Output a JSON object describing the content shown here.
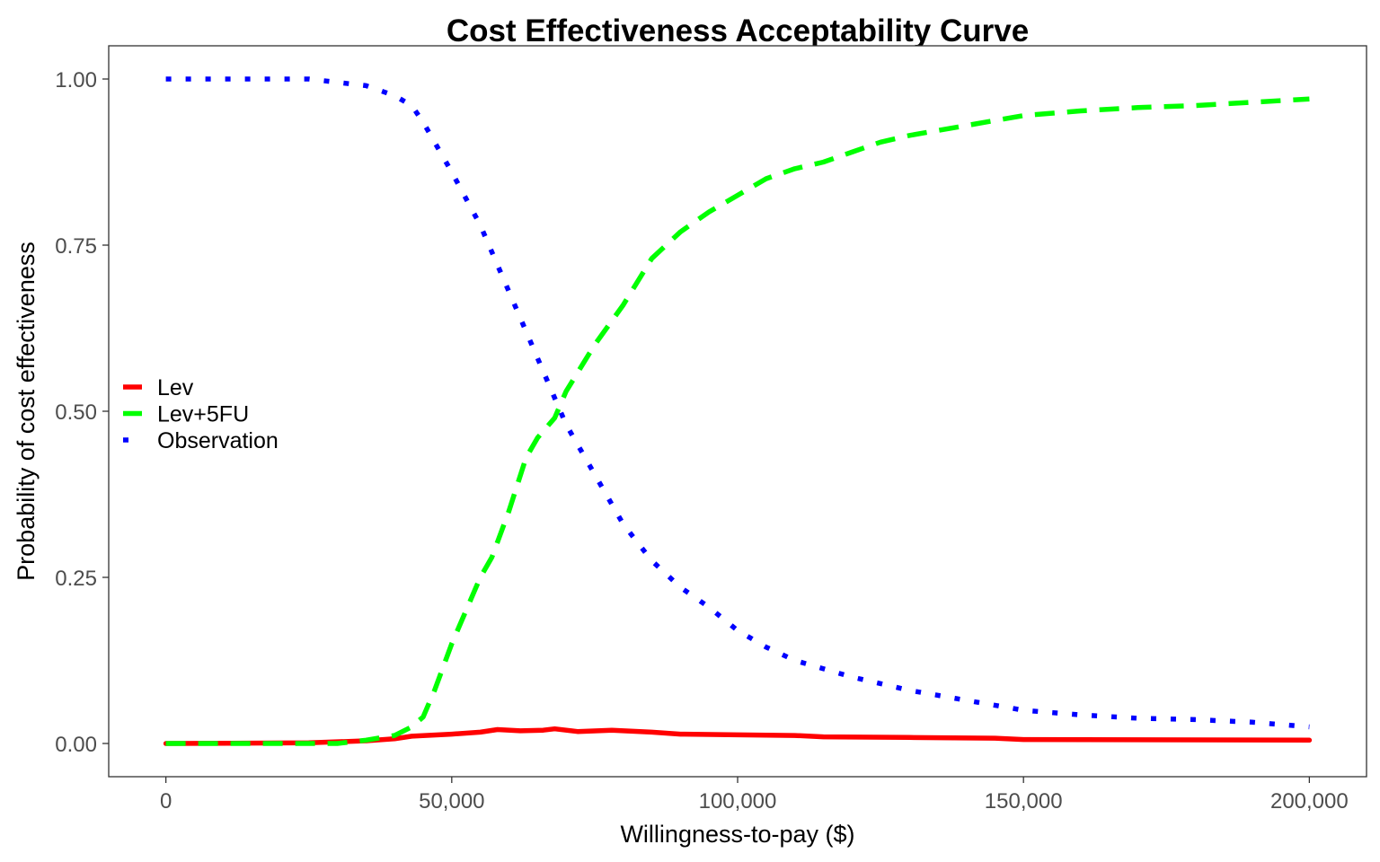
{
  "chart_data": {
    "type": "line",
    "title": "Cost Effectiveness Acceptability Curve",
    "xlabel": "Willingness-to-pay ($)",
    "ylabel": "Probability of cost effectiveness",
    "xlim": [
      -10000,
      210000
    ],
    "ylim": [
      -0.05,
      1.05
    ],
    "x_ticks": [
      0,
      50000,
      100000,
      150000,
      200000
    ],
    "x_tick_labels": [
      "0",
      "50,000",
      "100,000",
      "150,000",
      "200,000"
    ],
    "y_ticks": [
      0,
      0.25,
      0.5,
      0.75,
      1.0
    ],
    "y_tick_labels": [
      "0.00",
      "0.25",
      "0.50",
      "0.75",
      "1.00"
    ],
    "grid": false,
    "legend_position": "left",
    "series": [
      {
        "name": "Lev",
        "color": "#ff0000",
        "linestyle": "solid",
        "x": [
          0,
          25000,
          35000,
          40000,
          43000,
          50000,
          55000,
          58000,
          62000,
          66000,
          68000,
          72000,
          78000,
          85000,
          90000,
          100000,
          110000,
          115000,
          130000,
          145000,
          150000,
          200000
        ],
        "y": [
          0,
          0.001,
          0.004,
          0.007,
          0.011,
          0.014,
          0.017,
          0.021,
          0.019,
          0.02,
          0.022,
          0.018,
          0.02,
          0.017,
          0.014,
          0.013,
          0.012,
          0.01,
          0.009,
          0.008,
          0.006,
          0.005
        ]
      },
      {
        "name": "Lev+5FU",
        "color": "#00ff00",
        "linestyle": "dashed",
        "x": [
          0,
          30000,
          35000,
          40000,
          43000,
          45000,
          47000,
          50000,
          55000,
          57000,
          60000,
          63000,
          65000,
          68000,
          70000,
          75000,
          80000,
          85000,
          90000,
          95000,
          100000,
          105000,
          110000,
          115000,
          120000,
          125000,
          130000,
          140000,
          150000,
          160000,
          170000,
          180000,
          190000,
          200000
        ],
        "y": [
          0,
          0,
          0.005,
          0.012,
          0.025,
          0.04,
          0.08,
          0.15,
          0.25,
          0.28,
          0.35,
          0.43,
          0.46,
          0.49,
          0.53,
          0.6,
          0.66,
          0.73,
          0.77,
          0.8,
          0.825,
          0.85,
          0.865,
          0.875,
          0.89,
          0.905,
          0.915,
          0.93,
          0.945,
          0.952,
          0.957,
          0.96,
          0.965,
          0.97
        ]
      },
      {
        "name": "Observation",
        "color": "#0000ff",
        "linestyle": "dotted",
        "x": [
          0,
          25000,
          35000,
          40000,
          43000,
          45000,
          50000,
          55000,
          60000,
          65000,
          70000,
          75000,
          80000,
          85000,
          90000,
          95000,
          100000,
          105000,
          110000,
          120000,
          130000,
          140000,
          150000,
          160000,
          170000,
          180000,
          190000,
          200000
        ],
        "y": [
          1.0,
          1.0,
          0.99,
          0.975,
          0.96,
          0.935,
          0.86,
          0.78,
          0.68,
          0.58,
          0.48,
          0.405,
          0.33,
          0.275,
          0.235,
          0.205,
          0.17,
          0.145,
          0.125,
          0.1,
          0.08,
          0.065,
          0.05,
          0.043,
          0.038,
          0.036,
          0.032,
          0.025
        ]
      }
    ]
  }
}
